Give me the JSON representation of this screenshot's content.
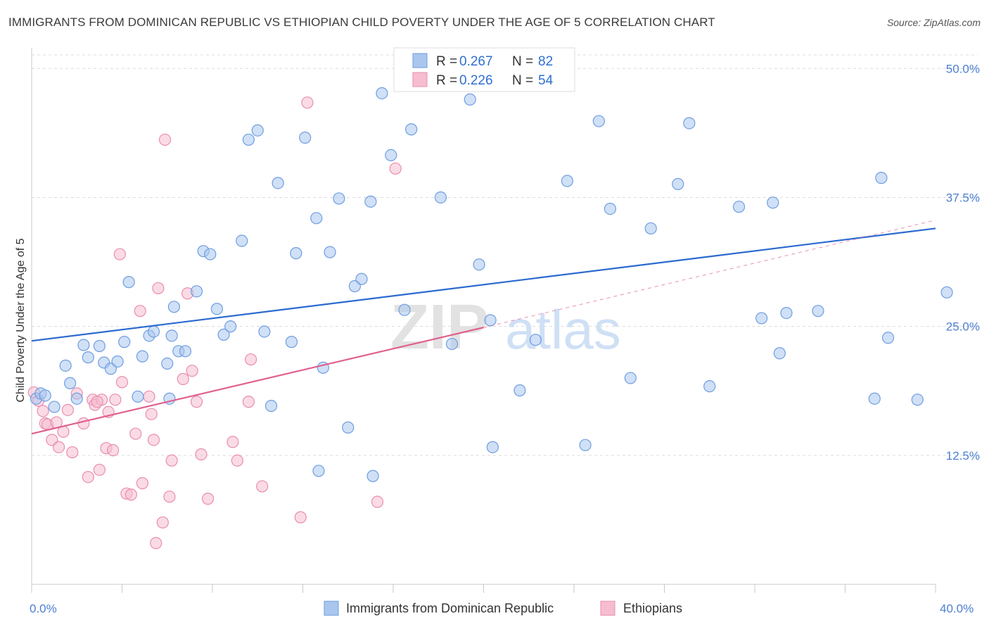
{
  "title": "IMMIGRANTS FROM DOMINICAN REPUBLIC VS ETHIOPIAN CHILD POVERTY UNDER THE AGE OF 5 CORRELATION CHART",
  "source": "Source: ZipAtlas.com",
  "watermark": {
    "zip": "ZIP",
    "atlas": "atlas"
  },
  "legend": {
    "series1": {
      "r_label": "R = ",
      "r_value": "0.267",
      "n_label": "N = ",
      "n_value": "82"
    },
    "series2": {
      "r_label": "R = ",
      "r_value": "0.226",
      "n_label": "N = ",
      "n_value": "54"
    }
  },
  "colors": {
    "blue_fill": "#a9c6ee",
    "blue_stroke": "#6f9ee0",
    "blue_line": "#2a6ad0",
    "pink_fill": "#f6bdd0",
    "pink_stroke": "#ea8db0",
    "pink_line": "#e0608f",
    "grid": "#dcdcdc",
    "tick_text": "#4d7fd1"
  },
  "chart_data": {
    "type": "scatter",
    "title": "IMMIGRANTS FROM DOMINICAN REPUBLIC VS ETHIOPIAN CHILD POVERTY UNDER THE AGE OF 5 CORRELATION CHART",
    "xlabel": "",
    "ylabel": "Child Poverty Under the Age of 5",
    "xlim": [
      0,
      40
    ],
    "ylim": [
      0,
      52
    ],
    "x_tick_labels": [
      "0.0%",
      "40.0%"
    ],
    "y_ticks": [
      12.5,
      25.0,
      37.5,
      50.0
    ],
    "y_tick_labels": [
      "12.5%",
      "25.0%",
      "37.5%",
      "50.0%"
    ],
    "grid": "horizontal dashed",
    "legend_position": "top-center",
    "series": [
      {
        "name": "Immigrants from Dominican Republic",
        "color": "#a9c6ee",
        "points": [
          [
            0.2,
            18.0
          ],
          [
            0.4,
            18.5
          ],
          [
            0.6,
            18.3
          ],
          [
            1.0,
            17.2
          ],
          [
            1.5,
            21.2
          ],
          [
            1.7,
            19.5
          ],
          [
            2.0,
            18.0
          ],
          [
            2.3,
            23.2
          ],
          [
            2.5,
            22.0
          ],
          [
            3.0,
            23.1
          ],
          [
            3.2,
            21.5
          ],
          [
            3.5,
            20.9
          ],
          [
            3.8,
            21.6
          ],
          [
            4.1,
            23.5
          ],
          [
            4.3,
            29.3
          ],
          [
            4.7,
            18.2
          ],
          [
            4.9,
            22.1
          ],
          [
            5.2,
            24.1
          ],
          [
            5.4,
            24.5
          ],
          [
            6.0,
            21.4
          ],
          [
            6.1,
            18.0
          ],
          [
            6.2,
            24.1
          ],
          [
            6.3,
            26.9
          ],
          [
            6.5,
            22.6
          ],
          [
            6.8,
            22.6
          ],
          [
            7.3,
            28.4
          ],
          [
            7.6,
            32.3
          ],
          [
            7.9,
            32.0
          ],
          [
            8.2,
            26.7
          ],
          [
            8.5,
            24.2
          ],
          [
            8.8,
            25.0
          ],
          [
            9.3,
            33.3
          ],
          [
            9.6,
            43.1
          ],
          [
            10.0,
            44.0
          ],
          [
            10.3,
            24.5
          ],
          [
            10.6,
            17.3
          ],
          [
            10.9,
            38.9
          ],
          [
            11.5,
            23.5
          ],
          [
            11.7,
            32.1
          ],
          [
            12.1,
            43.3
          ],
          [
            12.6,
            35.5
          ],
          [
            12.7,
            11.0
          ],
          [
            13.2,
            32.2
          ],
          [
            13.6,
            37.4
          ],
          [
            14.0,
            15.2
          ],
          [
            14.3,
            28.9
          ],
          [
            14.6,
            29.6
          ],
          [
            15.0,
            37.1
          ],
          [
            15.1,
            10.5
          ],
          [
            15.5,
            47.6
          ],
          [
            15.9,
            41.6
          ],
          [
            16.5,
            26.6
          ],
          [
            16.8,
            44.1
          ],
          [
            18.1,
            37.5
          ],
          [
            18.6,
            23.3
          ],
          [
            19.4,
            47.0
          ],
          [
            20.3,
            25.6
          ],
          [
            20.4,
            13.3
          ],
          [
            21.6,
            18.8
          ],
          [
            22.3,
            23.7
          ],
          [
            23.7,
            39.1
          ],
          [
            24.5,
            13.5
          ],
          [
            25.1,
            44.9
          ],
          [
            25.6,
            36.4
          ],
          [
            26.5,
            20.0
          ],
          [
            27.4,
            34.5
          ],
          [
            28.6,
            38.8
          ],
          [
            29.1,
            44.7
          ],
          [
            30.0,
            19.2
          ],
          [
            31.3,
            36.6
          ],
          [
            32.3,
            25.8
          ],
          [
            32.8,
            37.0
          ],
          [
            33.1,
            22.4
          ],
          [
            33.4,
            26.3
          ],
          [
            34.8,
            26.5
          ],
          [
            37.3,
            18.0
          ],
          [
            37.6,
            39.4
          ],
          [
            37.9,
            23.9
          ],
          [
            39.2,
            17.9
          ],
          [
            40.5,
            28.3
          ],
          [
            19.8,
            31.0
          ],
          [
            12.9,
            21.0
          ]
        ],
        "trend": {
          "x": [
            0,
            40
          ],
          "y": [
            23.6,
            34.5
          ]
        }
      },
      {
        "name": "Ethiopians",
        "color": "#f6bdd0",
        "points": [
          [
            0.1,
            18.6
          ],
          [
            0.3,
            17.8
          ],
          [
            0.5,
            16.8
          ],
          [
            0.6,
            15.6
          ],
          [
            0.7,
            15.5
          ],
          [
            0.9,
            14.0
          ],
          [
            1.1,
            15.7
          ],
          [
            1.2,
            13.3
          ],
          [
            1.4,
            14.8
          ],
          [
            1.6,
            16.9
          ],
          [
            1.8,
            12.8
          ],
          [
            2.0,
            18.5
          ],
          [
            2.3,
            15.6
          ],
          [
            2.5,
            10.4
          ],
          [
            2.7,
            17.9
          ],
          [
            2.8,
            17.4
          ],
          [
            3.0,
            11.1
          ],
          [
            3.1,
            17.9
          ],
          [
            3.3,
            13.2
          ],
          [
            3.4,
            16.7
          ],
          [
            3.6,
            13.0
          ],
          [
            3.7,
            17.9
          ],
          [
            3.9,
            32.0
          ],
          [
            4.0,
            19.6
          ],
          [
            4.2,
            8.8
          ],
          [
            4.4,
            8.7
          ],
          [
            4.6,
            14.6
          ],
          [
            4.8,
            26.5
          ],
          [
            4.9,
            9.8
          ],
          [
            5.2,
            18.2
          ],
          [
            5.3,
            16.5
          ],
          [
            5.4,
            14.0
          ],
          [
            5.6,
            28.7
          ],
          [
            5.8,
            6.0
          ],
          [
            5.9,
            43.1
          ],
          [
            6.1,
            8.5
          ],
          [
            6.2,
            12.0
          ],
          [
            6.7,
            19.9
          ],
          [
            6.9,
            28.2
          ],
          [
            7.1,
            20.7
          ],
          [
            7.3,
            17.7
          ],
          [
            7.5,
            12.6
          ],
          [
            7.8,
            8.3
          ],
          [
            8.9,
            13.8
          ],
          [
            9.1,
            12.0
          ],
          [
            9.6,
            17.7
          ],
          [
            9.7,
            21.8
          ],
          [
            10.2,
            9.5
          ],
          [
            11.9,
            6.5
          ],
          [
            12.2,
            46.7
          ],
          [
            15.3,
            8.0
          ],
          [
            16.1,
            40.3
          ],
          [
            5.5,
            4.0
          ],
          [
            2.9,
            17.7
          ]
        ],
        "trend": {
          "x": [
            0,
            20
          ],
          "y": [
            14.6,
            24.9
          ]
        },
        "trend_dashed": {
          "x": [
            20,
            40
          ],
          "y": [
            24.9,
            35.3
          ]
        }
      }
    ]
  },
  "bottom_legend": {
    "series1": "Immigrants from Dominican Republic",
    "series2": "Ethiopians"
  },
  "axis": {
    "ylabel": "Child Poverty Under the Age of 5",
    "x_min_label": "0.0%",
    "x_max_label": "40.0%",
    "y_tick_labels": [
      "12.5%",
      "25.0%",
      "37.5%",
      "50.0%"
    ]
  }
}
